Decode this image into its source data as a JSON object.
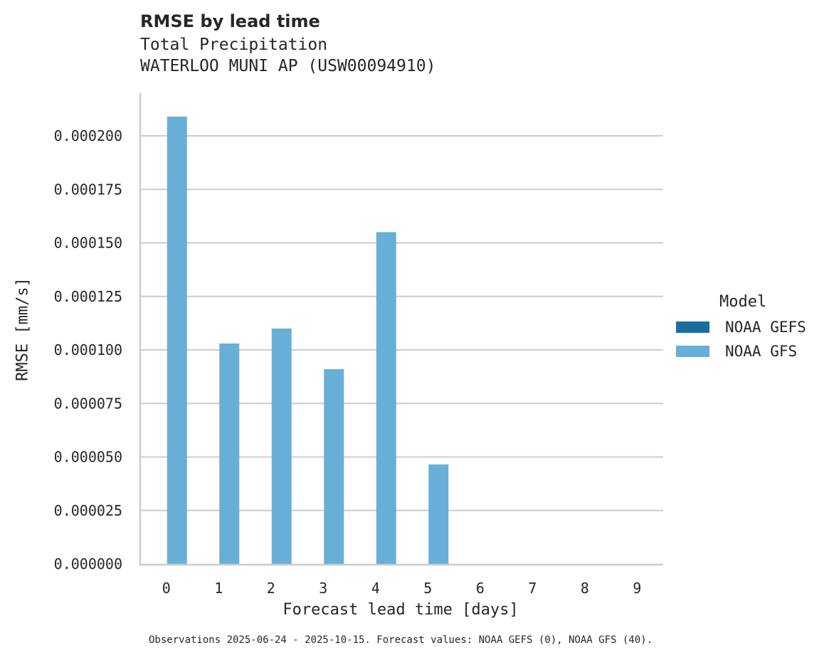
{
  "header": {
    "title": "RMSE by lead time",
    "subtitle_line1": "Total Precipitation",
    "subtitle_line2": "WATERLOO MUNI AP (USW00094910)"
  },
  "axes": {
    "xlabel": "Forecast lead time [days]",
    "ylabel": "RMSE [mm/s]"
  },
  "legend": {
    "title": "Model",
    "items": [
      {
        "label": "NOAA GEFS",
        "color": "#1a6e9e"
      },
      {
        "label": "NOAA GFS",
        "color": "#68afd7"
      }
    ]
  },
  "footnote": "Observations 2025-06-24 - 2025-10-15. Forecast values: NOAA GEFS (0), NOAA GFS (40).",
  "chart_data": {
    "type": "bar",
    "title": "RMSE by lead time",
    "subtitle": "Total Precipitation / WATERLOO MUNI AP (USW00094910)",
    "xlabel": "Forecast lead time [days]",
    "ylabel": "RMSE [mm/s]",
    "categories": [
      "0",
      "1",
      "2",
      "3",
      "4",
      "5",
      "6",
      "7",
      "8",
      "9"
    ],
    "series": [
      {
        "name": "NOAA GEFS",
        "color": "#1a6e9e",
        "values": [
          null,
          null,
          null,
          null,
          null,
          null,
          null,
          null,
          null,
          null
        ]
      },
      {
        "name": "NOAA GFS",
        "color": "#68afd7",
        "values": [
          0.000209,
          0.000103,
          0.00011,
          9.1e-05,
          0.000155,
          4.65e-05,
          null,
          null,
          null,
          null
        ]
      }
    ],
    "ylim": [
      0,
      0.00022
    ],
    "yticks": [
      "0.000000",
      "0.000025",
      "0.000050",
      "0.000075",
      "0.000100",
      "0.000125",
      "0.000150",
      "0.000175",
      "0.000200"
    ],
    "grid": "horizontal",
    "legend_position": "right"
  }
}
